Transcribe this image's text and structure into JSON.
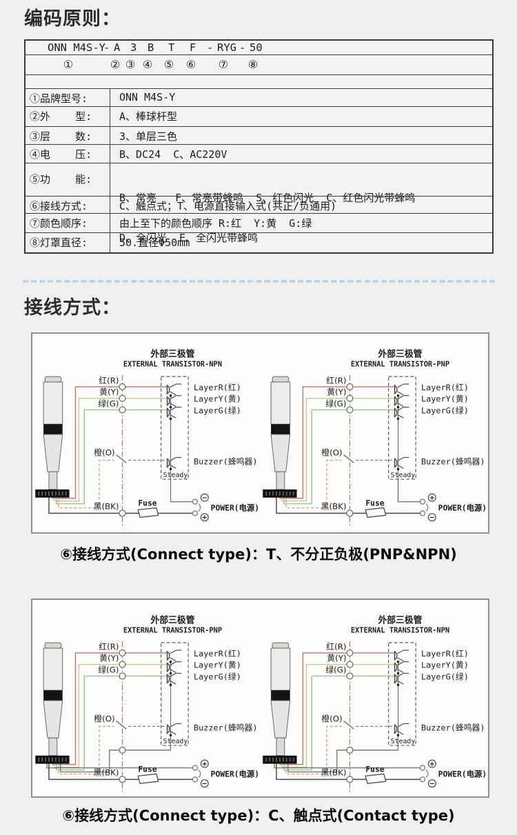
{
  "headings": {
    "coding": "编码原则：",
    "wiring": "接线方式："
  },
  "code_table": {
    "code_tokens": [
      "ONN M4S-Y",
      "-",
      "A",
      "3",
      "B",
      "T",
      "F",
      "-",
      "RYG",
      "-",
      "50"
    ],
    "index_tokens": [
      "①",
      "②",
      "③",
      "④",
      "⑤",
      "⑥",
      "⑦",
      "⑧"
    ],
    "rows": [
      {
        "label": "①品牌型号:",
        "value": "ONN M4S-Y"
      },
      {
        "label": "②外    型:",
        "value": "A、棒球杆型"
      },
      {
        "label": "③层    数:",
        "value": "3、单层三色"
      },
      {
        "label": "④电    压:",
        "value": "B、DC24  C、AC220V"
      },
      {
        "label": "⑤功    能:",
        "value": "B、常亮   F、常亮带蜂鸣  S、红色闪光  C、红色闪光带蜂鸣",
        "value2": "D、全闪光  E、全闪光带蜂鸣"
      },
      {
        "label": "⑥接线方式:",
        "value": "C、触点式；T、电源直接输入式(共正/负通用)"
      },
      {
        "label": "⑦颜色顺序:",
        "value": "由上至下的颜色顺序 R:红  Y:黄  G:绿"
      },
      {
        "label": "⑧灯罩直径:",
        "value": "50.直径Φ50mm"
      }
    ]
  },
  "wiring": {
    "labels": {
      "title_cn": "外部三极管",
      "wire_red": "红(R)",
      "wire_yellow": "黄(Y)",
      "wire_green": "绿(G)",
      "wire_orange": "橙(O)",
      "wire_black": "黑(BK)",
      "layer_r": "LayerR(红)",
      "layer_y": "LayerY(黄)",
      "layer_g": "LayerG(绿)",
      "buzzer": "Buzzer(蜂鸣器)",
      "steady": "Steady",
      "fuse": "Fuse",
      "power": "POWER(电源)"
    },
    "boxes": [
      {
        "caption": "⑥接线方式(Connect type)：T、不分正负极(PNP&NPN)",
        "diagrams": [
          {
            "title_en": "EXTERNAL TRANSISTOR-NPN",
            "top_sign": "−",
            "bottom_sign": "+",
            "connect_type": "T"
          },
          {
            "title_en": "EXTERNAL TRANSISTOR-PNP",
            "top_sign": "+",
            "bottom_sign": "−",
            "connect_type": "T"
          }
        ]
      },
      {
        "caption": "⑥接线方式(Connect type)：C、触点式(Contact type)",
        "diagrams": [
          {
            "title_en": "EXTERNAL TRANSISTOR-PNP",
            "top_sign": "+",
            "bottom_sign": "−",
            "connect_type": "C"
          },
          {
            "title_en": "EXTERNAL TRANSISTOR-NPN",
            "top_sign": "+",
            "bottom_sign": "−",
            "connect_type": "C"
          }
        ]
      }
    ]
  },
  "colors": {
    "wire_red": "#c17173",
    "wire_yellow": "#c9cc84",
    "wire_green": "#8cc98c",
    "wire_orange": "#d4938f",
    "centerline": "#c06868",
    "line": "#6e6e6e",
    "dark_line": "#4a4a4a",
    "divider_blue": "#b5d9e8"
  }
}
